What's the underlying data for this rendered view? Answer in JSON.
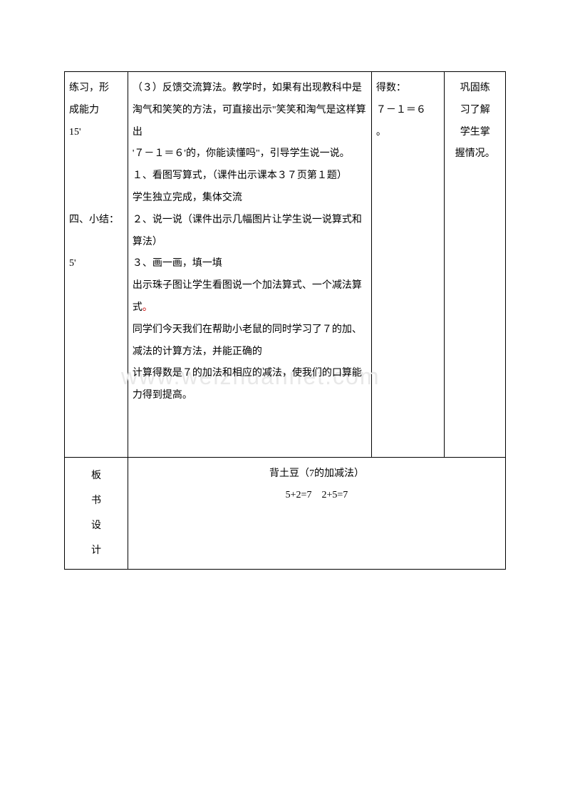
{
  "table": {
    "row1": {
      "col1_line1": "练习，形",
      "col1_line2": "成能力",
      "col1_line3": "15'",
      "col1_line4": "",
      "col1_line5": "",
      "col1_line6": "",
      "col1_line7": "四、小结：",
      "col1_line8": "",
      "col1_line9": "5'",
      "col2_p1": "（３）反馈交流算法。教学时，如果有出现教科中是淘气和笑笑的方法，可直接出示\"笑笑和淘气是这样算出",
      "col2_p2": "'７－１＝６'的，你能读懂吗\"，引导学生说一说。",
      "col2_p3": "１、看图写算式，（课件出示课本３７页第１题）",
      "col2_p4": "学生独立完成，集体交流",
      "col2_p5": "２、说一说（课件出示几幅图片让学生说一说算式和算法）",
      "col2_p6": "３、画一画，填一填",
      "col2_p7": "出示珠子图让学生看图说一个加法算式、一个减法算式",
      "col2_p8a": "同学们今天我们在帮助小老鼠的同时学习了７的加、减法的计算方法，并能正确的",
      "col2_p8b": "计算得数是７的加法和相应的减法，使我们的口算能力得到提高。",
      "col3_line1": "得数：",
      "col3_line2": "７－１＝６",
      "col3_line3": "。",
      "col4_line1": "巩固练",
      "col4_line2": "习了解",
      "col4_line3": "学生掌",
      "col4_line4": "握情况。"
    },
    "row2": {
      "label_c1": "板",
      "label_c2": "书",
      "label_c3": "设",
      "label_c4": "计",
      "content_line1": "背土豆（7的加减法）",
      "content_line2": "5+2=7　2+5=7"
    }
  },
  "watermark_text": "www.weizhuannet.com",
  "colors": {
    "border": "#000000",
    "text": "#000000",
    "watermark": "#e8e8e8",
    "red_accent": "#cc0000",
    "background": "#ffffff"
  },
  "typography": {
    "body_fontsize": 14,
    "line_height": 2.2,
    "watermark_fontsize": 32
  }
}
